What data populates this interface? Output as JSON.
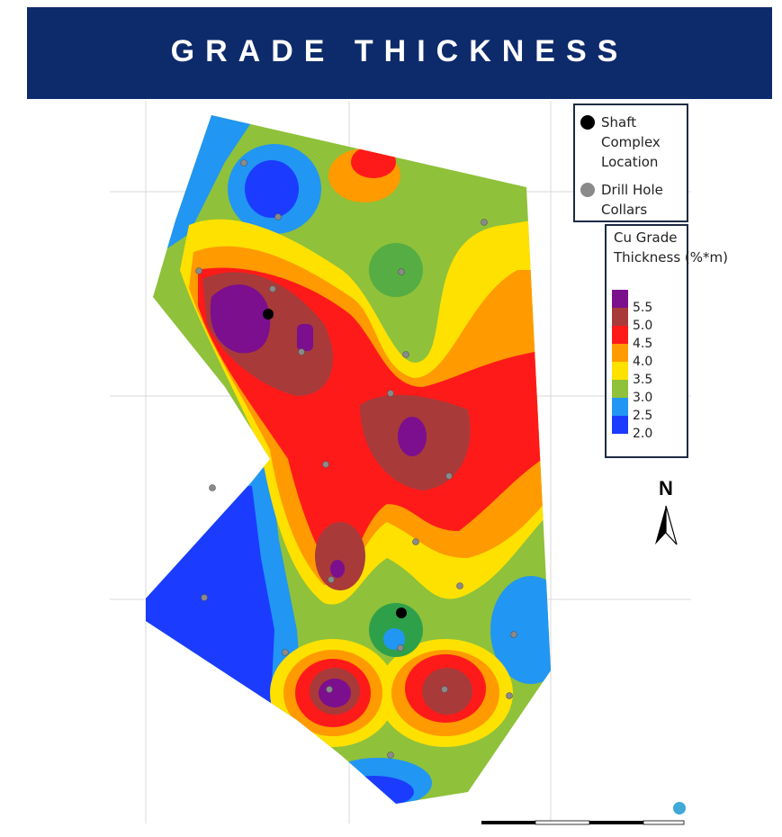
{
  "header": {
    "title": "GRADE THICKNESS"
  },
  "legend_symbols": [
    {
      "label": "Shaft Complex Location",
      "color": "#000000"
    },
    {
      "label": "Drill Hole Collars",
      "color": "#8a8a8a"
    }
  ],
  "color_scale": {
    "title": "Cu Grade Thickness (%*m)",
    "levels": [
      {
        "label": "5.5",
        "color": "#7b0f8e"
      },
      {
        "label": "5.0",
        "color": "#a83a3a"
      },
      {
        "label": "4.5",
        "color": "#ff1a1a"
      },
      {
        "label": "4.0",
        "color": "#ff9a00"
      },
      {
        "label": "3.5",
        "color": "#ffe100"
      },
      {
        "label": "3.0",
        "color": "#8fc13a"
      },
      {
        "label": "2.5",
        "color": "#2196f3"
      },
      {
        "label": "2.0",
        "color": "#1b3cff"
      }
    ]
  },
  "north_label": "N"
}
